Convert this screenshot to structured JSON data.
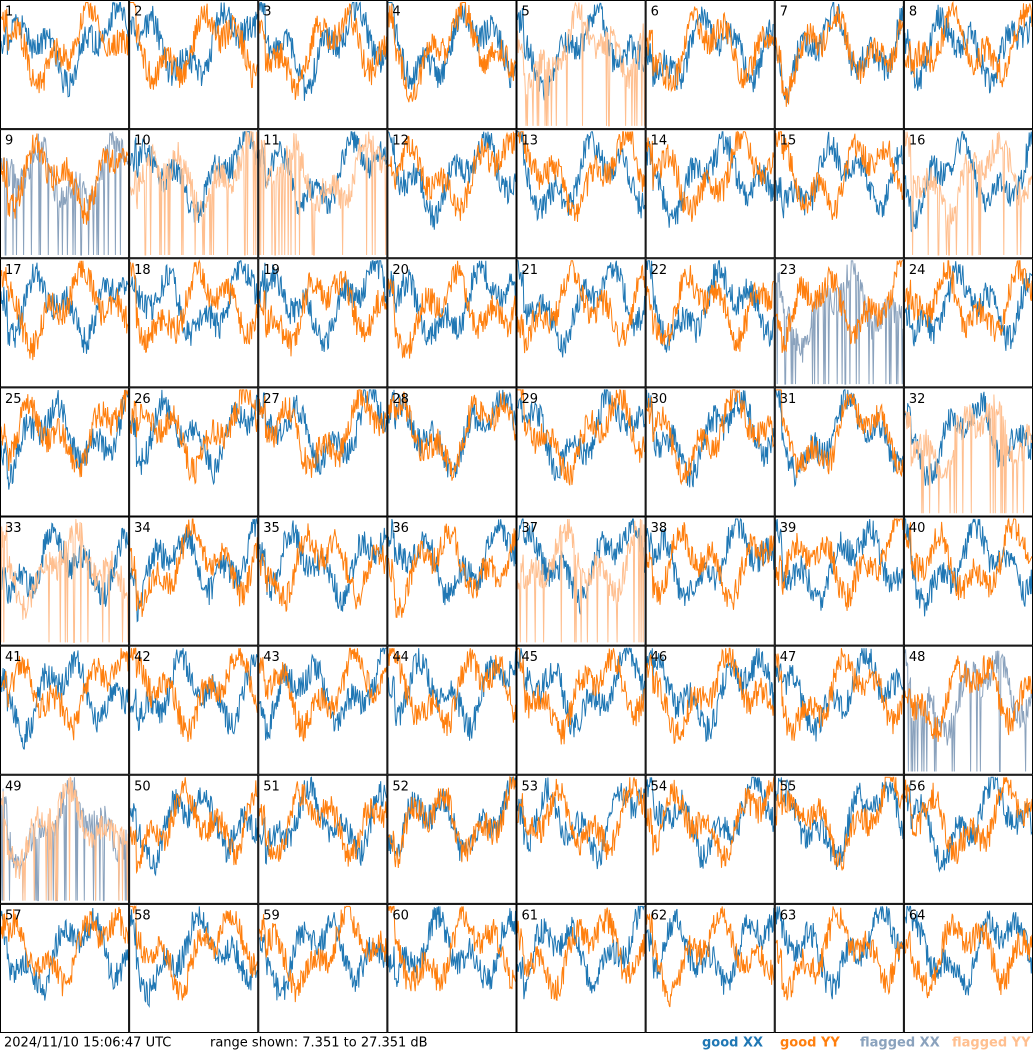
{
  "legend": [
    {
      "label": "good XX",
      "color": "#1f77b4"
    },
    {
      "label": "good YY",
      "color": "#ff7f0e"
    },
    {
      "label": "flagged XX",
      "color": "#8aa2bd"
    },
    {
      "label": "flagged YY",
      "color": "#ffbf8f"
    }
  ],
  "footer": {
    "timestamp": "2024/11/10 15:06:47 UTC",
    "range": "range shown: 7.351 to 27.351 dB"
  },
  "panels": [
    {
      "label": "1",
      "xx_flagged": false,
      "yy_flagged": false
    },
    {
      "label": "2",
      "xx_flagged": false,
      "yy_flagged": false
    },
    {
      "label": "3",
      "xx_flagged": false,
      "yy_flagged": false
    },
    {
      "label": "4",
      "xx_flagged": false,
      "yy_flagged": false
    },
    {
      "label": "5",
      "xx_flagged": false,
      "yy_flagged": true
    },
    {
      "label": "6",
      "xx_flagged": false,
      "yy_flagged": false
    },
    {
      "label": "7",
      "xx_flagged": false,
      "yy_flagged": false
    },
    {
      "label": "8",
      "xx_flagged": false,
      "yy_flagged": false
    },
    {
      "label": "9",
      "xx_flagged": true,
      "yy_flagged": false
    },
    {
      "label": "10",
      "xx_flagged": false,
      "yy_flagged": true
    },
    {
      "label": "11",
      "xx_flagged": false,
      "yy_flagged": true
    },
    {
      "label": "12",
      "xx_flagged": false,
      "yy_flagged": false
    },
    {
      "label": "13",
      "xx_flagged": false,
      "yy_flagged": false
    },
    {
      "label": "14",
      "xx_flagged": false,
      "yy_flagged": false
    },
    {
      "label": "15",
      "xx_flagged": false,
      "yy_flagged": false
    },
    {
      "label": "16",
      "xx_flagged": false,
      "yy_flagged": true
    },
    {
      "label": "17",
      "xx_flagged": false,
      "yy_flagged": false
    },
    {
      "label": "18",
      "xx_flagged": false,
      "yy_flagged": false
    },
    {
      "label": "19",
      "xx_flagged": false,
      "yy_flagged": false
    },
    {
      "label": "20",
      "xx_flagged": false,
      "yy_flagged": false
    },
    {
      "label": "21",
      "xx_flagged": false,
      "yy_flagged": false
    },
    {
      "label": "22",
      "xx_flagged": false,
      "yy_flagged": false
    },
    {
      "label": "23",
      "xx_flagged": true,
      "yy_flagged": false
    },
    {
      "label": "24",
      "xx_flagged": false,
      "yy_flagged": false
    },
    {
      "label": "25",
      "xx_flagged": false,
      "yy_flagged": false
    },
    {
      "label": "26",
      "xx_flagged": false,
      "yy_flagged": false
    },
    {
      "label": "27",
      "xx_flagged": false,
      "yy_flagged": false
    },
    {
      "label": "28",
      "xx_flagged": false,
      "yy_flagged": false
    },
    {
      "label": "29",
      "xx_flagged": false,
      "yy_flagged": false
    },
    {
      "label": "30",
      "xx_flagged": false,
      "yy_flagged": false
    },
    {
      "label": "31",
      "xx_flagged": false,
      "yy_flagged": false
    },
    {
      "label": "32",
      "xx_flagged": false,
      "yy_flagged": true
    },
    {
      "label": "33",
      "xx_flagged": false,
      "yy_flagged": true
    },
    {
      "label": "34",
      "xx_flagged": false,
      "yy_flagged": false
    },
    {
      "label": "35",
      "xx_flagged": false,
      "yy_flagged": false
    },
    {
      "label": "36",
      "xx_flagged": false,
      "yy_flagged": false
    },
    {
      "label": "37",
      "xx_flagged": false,
      "yy_flagged": true
    },
    {
      "label": "38",
      "xx_flagged": false,
      "yy_flagged": false
    },
    {
      "label": "39",
      "xx_flagged": false,
      "yy_flagged": false
    },
    {
      "label": "40",
      "xx_flagged": false,
      "yy_flagged": false
    },
    {
      "label": "41",
      "xx_flagged": false,
      "yy_flagged": false
    },
    {
      "label": "42",
      "xx_flagged": false,
      "yy_flagged": false
    },
    {
      "label": "43",
      "xx_flagged": false,
      "yy_flagged": false
    },
    {
      "label": "44",
      "xx_flagged": false,
      "yy_flagged": false
    },
    {
      "label": "45",
      "xx_flagged": false,
      "yy_flagged": false
    },
    {
      "label": "46",
      "xx_flagged": false,
      "yy_flagged": false
    },
    {
      "label": "47",
      "xx_flagged": false,
      "yy_flagged": false
    },
    {
      "label": "48",
      "xx_flagged": true,
      "yy_flagged": false
    },
    {
      "label": "49",
      "xx_flagged": true,
      "yy_flagged": true
    },
    {
      "label": "50",
      "xx_flagged": false,
      "yy_flagged": false
    },
    {
      "label": "51",
      "xx_flagged": false,
      "yy_flagged": false
    },
    {
      "label": "52",
      "xx_flagged": false,
      "yy_flagged": false
    },
    {
      "label": "53",
      "xx_flagged": false,
      "yy_flagged": false
    },
    {
      "label": "54",
      "xx_flagged": false,
      "yy_flagged": false
    },
    {
      "label": "55",
      "xx_flagged": false,
      "yy_flagged": false
    },
    {
      "label": "56",
      "xx_flagged": false,
      "yy_flagged": false
    },
    {
      "label": "57",
      "xx_flagged": false,
      "yy_flagged": false
    },
    {
      "label": "58",
      "xx_flagged": false,
      "yy_flagged": false
    },
    {
      "label": "59",
      "xx_flagged": false,
      "yy_flagged": false
    },
    {
      "label": "60",
      "xx_flagged": false,
      "yy_flagged": false
    },
    {
      "label": "61",
      "xx_flagged": false,
      "yy_flagged": false
    },
    {
      "label": "62",
      "xx_flagged": false,
      "yy_flagged": false
    },
    {
      "label": "63",
      "xx_flagged": false,
      "yy_flagged": false
    },
    {
      "label": "64",
      "xx_flagged": false,
      "yy_flagged": false
    }
  ]
}
